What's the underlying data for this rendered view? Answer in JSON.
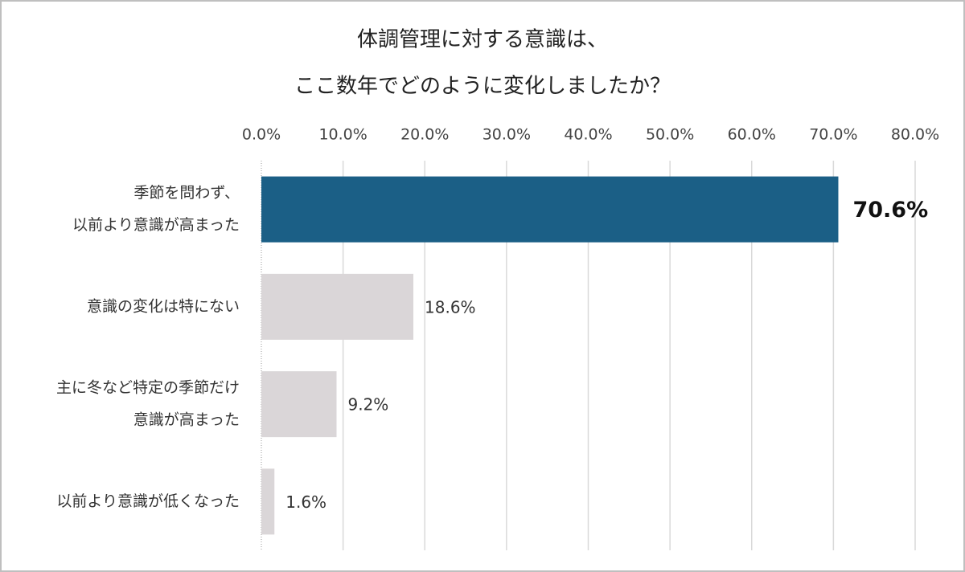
{
  "chart_data": {
    "type": "bar",
    "orientation": "horizontal",
    "title": [
      "体調管理に対する意識は、",
      "ここ数年でどのように変化しましたか？"
    ],
    "categories": [
      [
        "季節を問わず、",
        "以前より意識が高まった"
      ],
      [
        "意識の変化は特にない"
      ],
      [
        "主に冬など特定の季節だけ",
        "意識が高まった"
      ],
      [
        "以前より意識が低くなった"
      ]
    ],
    "values": [
      70.6,
      18.6,
      9.2,
      1.6
    ],
    "value_labels": [
      "70.6%",
      "18.6%",
      "9.2%",
      "1.6%"
    ],
    "colors": [
      "#1b5f86",
      "#dad6d8",
      "#dad6d8",
      "#dad6d8"
    ],
    "xlim": [
      0,
      80
    ],
    "xticks": [
      {
        "value": 0,
        "label": "0.0%"
      },
      {
        "value": 10,
        "label": "10.0%"
      },
      {
        "value": 20,
        "label": "20.0%"
      },
      {
        "value": 30,
        "label": "30.0%"
      },
      {
        "value": 40,
        "label": "40.0%"
      },
      {
        "value": 50,
        "label": "50.0%"
      },
      {
        "value": 60,
        "label": "60.0%"
      },
      {
        "value": 70,
        "label": "70.0%"
      },
      {
        "value": 80,
        "label": "80.0%"
      }
    ],
    "grid": true
  }
}
